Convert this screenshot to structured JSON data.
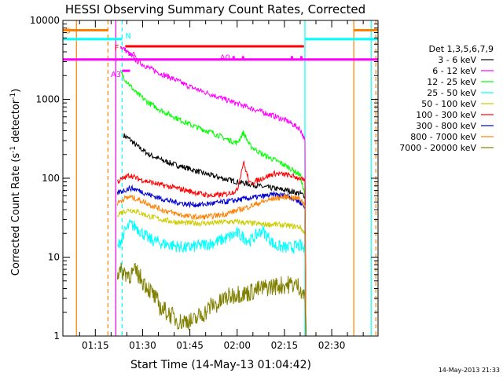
{
  "chart_data": {
    "type": "line",
    "title": "HESSI Observing Summary Count Rates, Corrected",
    "xlabel": "Start Time (14-May-13 01:04:42)",
    "ylabel_main": "Corrected Count Rate (s",
    "ylabel_sup": "-1",
    "ylabel_tail": " detector",
    "ylabel_end": ")",
    "ylog": true,
    "ylim": [
      1,
      10000
    ],
    "xlim_min": [
      64.7,
      164.7
    ],
    "x_ticks_min": [
      75,
      90,
      105,
      120,
      135,
      150
    ],
    "x_tick_labels": [
      "01:15",
      "01:30",
      "01:45",
      "02:00",
      "02:15",
      "02:30"
    ],
    "y_ticks": [
      1,
      10,
      100,
      1000,
      10000
    ],
    "y_tick_labels": [
      "1",
      "10",
      "100",
      "1000",
      "10000"
    ],
    "legend_title": "Det 1,3,5,6,7,9",
    "legend_position": "right",
    "timestamp": "14-May-2013 21:33",
    "series": [
      {
        "name": "3 - 6 keV",
        "color": "#000000",
        "x": [
          84,
          86,
          88,
          92,
          96,
          100,
          104,
          108,
          112,
          116,
          120,
          124,
          128,
          132,
          136,
          140,
          141.5
        ],
        "y": [
          350,
          310,
          260,
          200,
          170,
          150,
          135,
          120,
          108,
          98,
          90,
          84,
          78,
          74,
          70,
          64,
          60
        ]
      },
      {
        "name": "6 - 12 keV",
        "color": "#ff00ff",
        "x": [
          83,
          84,
          86,
          88,
          92,
          96,
          100,
          104,
          108,
          112,
          116,
          120,
          124,
          128,
          132,
          136,
          140,
          141.5
        ],
        "y": [
          4600,
          4400,
          3700,
          3100,
          2500,
          2100,
          1800,
          1500,
          1300,
          1150,
          1000,
          880,
          780,
          690,
          610,
          530,
          420,
          300
        ]
      },
      {
        "name": "12 - 25 keV",
        "color": "#00ff00",
        "x": [
          83,
          84,
          86,
          88,
          92,
          96,
          100,
          104,
          108,
          112,
          116,
          120,
          122,
          124,
          128,
          132,
          136,
          140,
          141.5
        ],
        "y": [
          2200,
          1900,
          1500,
          1200,
          900,
          720,
          600,
          500,
          430,
          380,
          320,
          280,
          380,
          260,
          200,
          170,
          140,
          110,
          60
        ]
      },
      {
        "name": "25 - 50 keV",
        "color": "#00ffff",
        "x": [
          82,
          84,
          86,
          88,
          92,
          96,
          100,
          104,
          108,
          112,
          116,
          120,
          124,
          128,
          132,
          136,
          140,
          141.5
        ],
        "y": [
          13,
          20,
          26,
          24,
          17,
          15,
          14,
          13,
          14,
          15,
          17,
          20,
          16,
          22,
          14,
          13,
          14,
          12
        ]
      },
      {
        "name": "50 - 100 keV",
        "color": "#cccc00",
        "x": [
          82,
          84,
          86,
          88,
          92,
          96,
          100,
          104,
          108,
          112,
          116,
          120,
          124,
          128,
          132,
          136,
          140,
          141.5
        ],
        "y": [
          35,
          38,
          40,
          38,
          33,
          30,
          28,
          27,
          27,
          27,
          28,
          28,
          27,
          26,
          26,
          25,
          24,
          20
        ]
      },
      {
        "name": "100 - 300 keV",
        "color": "#ff0000",
        "x": [
          82,
          84,
          86,
          88,
          92,
          96,
          100,
          104,
          108,
          112,
          116,
          120,
          122,
          124,
          128,
          132,
          136,
          140,
          141.5
        ],
        "y": [
          90,
          100,
          110,
          100,
          90,
          82,
          76,
          70,
          64,
          60,
          62,
          70,
          160,
          85,
          100,
          115,
          110,
          100,
          90
        ]
      },
      {
        "name": "300 - 800 keV",
        "color": "#0000cc",
        "x": [
          82,
          84,
          86,
          88,
          92,
          96,
          100,
          104,
          108,
          112,
          116,
          120,
          124,
          128,
          132,
          136,
          140,
          141.5
        ],
        "y": [
          65,
          70,
          75,
          72,
          62,
          55,
          50,
          47,
          46,
          48,
          50,
          53,
          56,
          59,
          62,
          60,
          50,
          42
        ]
      },
      {
        "name": "800 - 7000 keV",
        "color": "#ff8000",
        "x": [
          82,
          84,
          86,
          88,
          92,
          96,
          100,
          104,
          108,
          112,
          116,
          120,
          124,
          128,
          132,
          136,
          140,
          141.5
        ],
        "y": [
          48,
          55,
          58,
          55,
          47,
          40,
          36,
          33,
          32,
          33,
          35,
          39,
          44,
          50,
          56,
          58,
          55,
          46
        ]
      },
      {
        "name": "7000 - 20000 keV",
        "color": "#808000",
        "x": [
          82,
          84,
          86,
          88,
          90,
          92,
          94,
          96,
          98,
          100,
          102,
          104,
          106,
          108,
          110,
          112,
          114,
          116,
          118,
          120,
          122,
          124,
          126,
          128,
          130,
          132,
          134,
          136,
          138,
          140,
          141.5
        ],
        "y": [
          6.5,
          6.5,
          6,
          6.5,
          5,
          4,
          3,
          2.2,
          2,
          1.7,
          1.5,
          1.6,
          1.5,
          1.8,
          2,
          2.5,
          2.5,
          3,
          3.2,
          3.5,
          3.4,
          3.6,
          3.8,
          4,
          4.2,
          4.3,
          4.4,
          4.5,
          4.5,
          4.2,
          3
        ]
      }
    ],
    "attenuator_bars": [
      {
        "label": "F",
        "color": "#ff0000",
        "x0": 84.5,
        "x1": 141.2,
        "y": 4700
      },
      {
        "label": "A0",
        "color": "#ff00ff",
        "x0": 64.7,
        "x1": 164.7,
        "y": 3200
      }
    ],
    "state_bars": [
      {
        "label": "S",
        "color": "#ff8000",
        "x0": 64.7,
        "x1": 79,
        "y": 7500,
        "x0b": 157,
        "x1b": 164.7
      },
      {
        "label": "N",
        "color": "#00ffff",
        "x0": 64.7,
        "x1": 83.5,
        "y": 5800,
        "x0b": 141.5,
        "x1b": 164.7
      },
      {
        "label": "A3",
        "color": "#ff00ff",
        "x0": 83.5,
        "x1": 86,
        "y": 2300
      },
      {
        "label": "A",
        "color": "#ff00ff",
        "x0": 85.5,
        "x1": 86.5,
        "y": 3700
      }
    ],
    "vertical_lines": [
      {
        "color": "#ff8000",
        "x": 69,
        "style": "solid"
      },
      {
        "color": "#ff8000",
        "x": 79,
        "style": "dashed"
      },
      {
        "color": "#ff8000",
        "x": 157,
        "style": "solid"
      },
      {
        "color": "#ff8000",
        "x": 164,
        "style": "dashed"
      },
      {
        "color": "#00ffff",
        "x": 83.5,
        "style": "dashed"
      },
      {
        "color": "#00ffff",
        "x": 141.5,
        "style": "solid"
      },
      {
        "color": "#00ffff",
        "x": 162.5,
        "style": "solid"
      },
      {
        "color": "#ff00ff",
        "x": 81.5,
        "style": "solid"
      }
    ]
  }
}
